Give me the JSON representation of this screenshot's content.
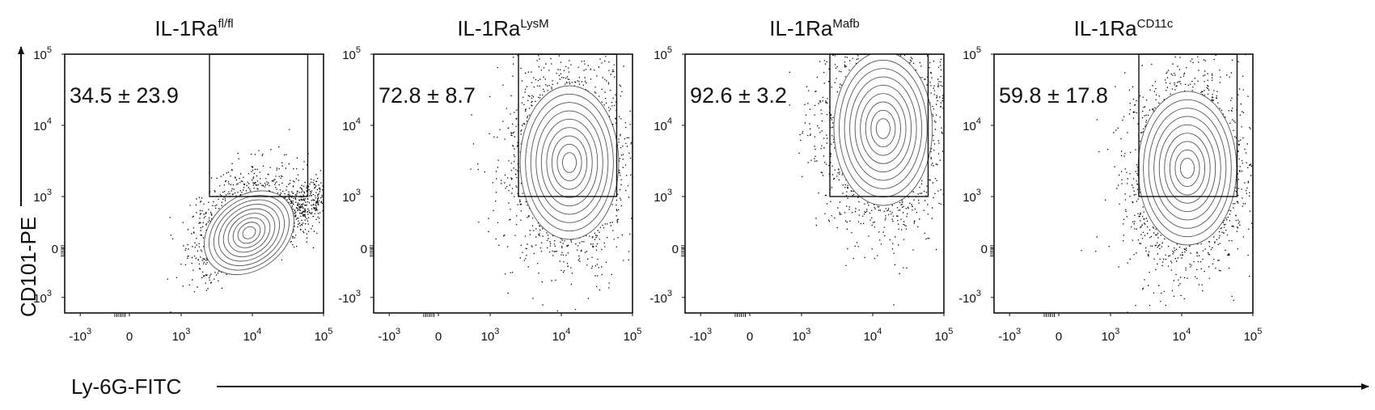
{
  "figure": {
    "x_axis_label": "Ly-6G-FITC",
    "y_axis_label": "CD101-PE"
  },
  "chart_data": [
    {
      "type": "scatter",
      "title_main": "IL-1Ra",
      "title_sup": "fl/fl",
      "gate_label": "34.5 ± 23.9",
      "x_ticks": [
        {
          "base": "-10",
          "exp": "3"
        },
        {
          "base": "0",
          "exp": ""
        },
        {
          "base": "10",
          "exp": "3"
        },
        {
          "base": "10",
          "exp": "4"
        },
        {
          "base": "10",
          "exp": "5"
        }
      ],
      "y_ticks": [
        {
          "base": "10",
          "exp": "5"
        },
        {
          "base": "10",
          "exp": "4"
        },
        {
          "base": "10",
          "exp": "3"
        },
        {
          "base": "0",
          "exp": ""
        },
        {
          "base": "-10",
          "exp": "3"
        }
      ],
      "x_scale": "biexponential",
      "y_scale": "biexponential",
      "gate_x_range": [
        2500,
        60000
      ],
      "gate_y_range": [
        1000,
        100000
      ],
      "gate_percent_mean": 34.5,
      "gate_percent_sd": 23.9,
      "population_center": {
        "x": 9000,
        "y": 300
      },
      "dot_color": "#000000",
      "contour_color": "#555555"
    },
    {
      "type": "scatter",
      "title_main": "IL-1Ra",
      "title_sup": "LysM",
      "gate_label": "72.8 ± 8.7",
      "x_ticks": [
        {
          "base": "-10",
          "exp": "3"
        },
        {
          "base": "0",
          "exp": ""
        },
        {
          "base": "10",
          "exp": "3"
        },
        {
          "base": "10",
          "exp": "4"
        },
        {
          "base": "10",
          "exp": "5"
        }
      ],
      "y_ticks": [
        {
          "base": "10",
          "exp": "5"
        },
        {
          "base": "10",
          "exp": "4"
        },
        {
          "base": "10",
          "exp": "3"
        },
        {
          "base": "0",
          "exp": ""
        },
        {
          "base": "-10",
          "exp": "3"
        }
      ],
      "x_scale": "biexponential",
      "y_scale": "biexponential",
      "gate_x_range": [
        2500,
        60000
      ],
      "gate_y_range": [
        1000,
        100000
      ],
      "gate_percent_mean": 72.8,
      "gate_percent_sd": 8.7,
      "population_center": {
        "x": 13000,
        "y": 3000
      },
      "dot_color": "#000000",
      "contour_color": "#555555"
    },
    {
      "type": "scatter",
      "title_main": "IL-1Ra",
      "title_sup": "Mafb",
      "gate_label": "92.6 ± 3.2",
      "x_ticks": [
        {
          "base": "-10",
          "exp": "3"
        },
        {
          "base": "0",
          "exp": ""
        },
        {
          "base": "10",
          "exp": "3"
        },
        {
          "base": "10",
          "exp": "4"
        },
        {
          "base": "10",
          "exp": "5"
        }
      ],
      "y_ticks": [
        {
          "base": "10",
          "exp": "5"
        },
        {
          "base": "10",
          "exp": "4"
        },
        {
          "base": "10",
          "exp": "3"
        },
        {
          "base": "0",
          "exp": ""
        },
        {
          "base": "-10",
          "exp": "3"
        }
      ],
      "x_scale": "biexponential",
      "y_scale": "biexponential",
      "gate_x_range": [
        2500,
        60000
      ],
      "gate_y_range": [
        1000,
        100000
      ],
      "gate_percent_mean": 92.6,
      "gate_percent_sd": 3.2,
      "population_center": {
        "x": 14000,
        "y": 9000
      },
      "dot_color": "#000000",
      "contour_color": "#555555"
    },
    {
      "type": "scatter",
      "title_main": "IL-1Ra",
      "title_sup": "CD11c",
      "gate_label": "59.8 ± 17.8",
      "x_ticks": [
        {
          "base": "-10",
          "exp": "3"
        },
        {
          "base": "0",
          "exp": ""
        },
        {
          "base": "10",
          "exp": "3"
        },
        {
          "base": "10",
          "exp": "4"
        },
        {
          "base": "10",
          "exp": "5"
        }
      ],
      "y_ticks": [
        {
          "base": "10",
          "exp": "5"
        },
        {
          "base": "10",
          "exp": "4"
        },
        {
          "base": "10",
          "exp": "3"
        },
        {
          "base": "0",
          "exp": ""
        },
        {
          "base": "-10",
          "exp": "3"
        }
      ],
      "x_scale": "biexponential",
      "y_scale": "biexponential",
      "gate_x_range": [
        2500,
        60000
      ],
      "gate_y_range": [
        1000,
        100000
      ],
      "gate_percent_mean": 59.8,
      "gate_percent_sd": 17.8,
      "population_center": {
        "x": 12000,
        "y": 2500
      },
      "dot_color": "#000000",
      "contour_color": "#555555"
    }
  ]
}
